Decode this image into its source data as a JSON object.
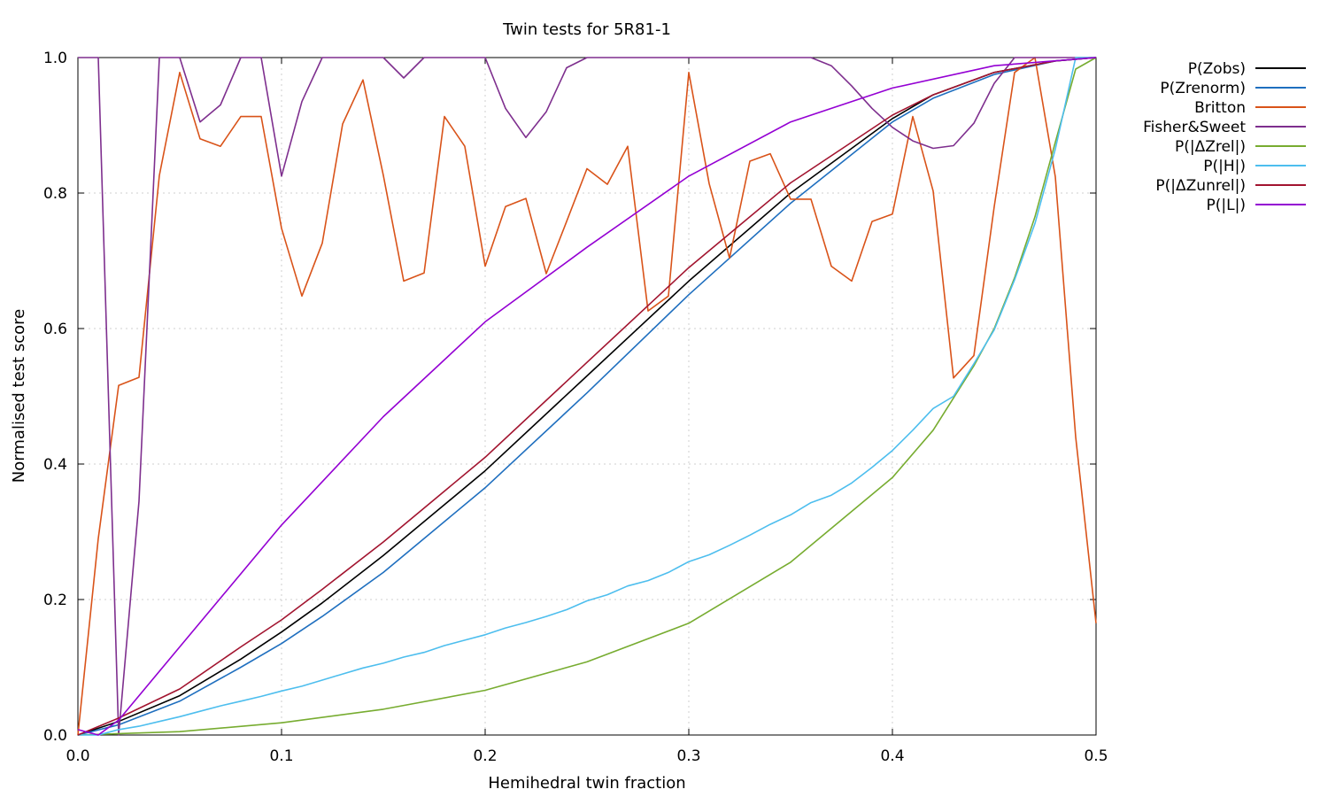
{
  "chart_data": {
    "type": "line",
    "title": "Twin tests for 5R81-1",
    "xlabel": "Hemihedral twin fraction",
    "ylabel": "Normalised test score",
    "xlim": [
      0.0,
      0.5
    ],
    "ylim": [
      0.0,
      1.0
    ],
    "x_ticks": [
      "0.0",
      "0.1",
      "0.2",
      "0.3",
      "0.4",
      "0.5"
    ],
    "y_ticks": [
      "0.0",
      "0.2",
      "0.4",
      "0.6",
      "0.8",
      "1.0"
    ],
    "grid": true,
    "legend_position": "outside-top-right",
    "series": [
      {
        "name": "P(Zobs)",
        "color": "#000000",
        "x": [
          0,
          0.02,
          0.05,
          0.08,
          0.1,
          0.12,
          0.15,
          0.18,
          0.2,
          0.25,
          0.3,
          0.35,
          0.4,
          0.42,
          0.45,
          0.48,
          0.5
        ],
        "y": [
          0,
          0.02,
          0.058,
          0.112,
          0.152,
          0.195,
          0.265,
          0.34,
          0.39,
          0.53,
          0.67,
          0.8,
          0.91,
          0.945,
          0.978,
          0.995,
          1.0
        ]
      },
      {
        "name": "P(Zrenorm)",
        "color": "#1f6fbf",
        "x": [
          0,
          0.02,
          0.05,
          0.08,
          0.1,
          0.12,
          0.15,
          0.18,
          0.2,
          0.25,
          0.3,
          0.35,
          0.4,
          0.42,
          0.45,
          0.48,
          0.5
        ],
        "y": [
          0,
          0.015,
          0.05,
          0.1,
          0.135,
          0.175,
          0.24,
          0.315,
          0.365,
          0.505,
          0.65,
          0.785,
          0.905,
          0.94,
          0.975,
          0.995,
          1.0
        ]
      },
      {
        "name": "Britton",
        "color": "#d95319",
        "x": [
          0,
          0.01,
          0.02,
          0.03,
          0.04,
          0.05,
          0.06,
          0.07,
          0.08,
          0.09,
          0.1,
          0.11,
          0.12,
          0.13,
          0.14,
          0.15,
          0.16,
          0.17,
          0.18,
          0.19,
          0.2,
          0.21,
          0.22,
          0.23,
          0.24,
          0.25,
          0.26,
          0.27,
          0.28,
          0.29,
          0.3,
          0.31,
          0.32,
          0.33,
          0.34,
          0.35,
          0.36,
          0.37,
          0.38,
          0.39,
          0.4,
          0.41,
          0.42,
          0.43,
          0.44,
          0.45,
          0.46,
          0.47,
          0.48,
          0.49,
          0.5
        ],
        "y": [
          0,
          0.29,
          0.516,
          0.528,
          0.826,
          0.978,
          0.88,
          0.869,
          0.913,
          0.913,
          0.748,
          0.648,
          0.726,
          0.902,
          0.967,
          0.826,
          0.67,
          0.682,
          0.913,
          0.869,
          0.692,
          0.78,
          0.792,
          0.681,
          0.758,
          0.836,
          0.813,
          0.869,
          0.626,
          0.648,
          0.978,
          0.814,
          0.704,
          0.847,
          0.858,
          0.791,
          0.791,
          0.692,
          0.67,
          0.758,
          0.769,
          0.913,
          0.803,
          0.527,
          0.56,
          0.78,
          0.978,
          1.0,
          0.824,
          0.44,
          0.165
        ]
      },
      {
        "name": "Fisher&Sweet",
        "color": "#7e2f8e",
        "x": [
          0,
          0.005,
          0.01,
          0.02,
          0.03,
          0.04,
          0.05,
          0.06,
          0.07,
          0.08,
          0.09,
          0.1,
          0.11,
          0.12,
          0.13,
          0.14,
          0.15,
          0.16,
          0.17,
          0.18,
          0.19,
          0.2,
          0.21,
          0.22,
          0.23,
          0.24,
          0.25,
          0.26,
          0.3,
          0.35,
          0.36,
          0.37,
          0.38,
          0.39,
          0.4,
          0.41,
          0.42,
          0.43,
          0.44,
          0.45,
          0.46,
          0.47,
          0.48,
          0.49,
          0.5
        ],
        "y": [
          1.0,
          1.0,
          1.0,
          0.0,
          0.345,
          1.0,
          1.0,
          0.905,
          0.93,
          1.0,
          1.0,
          0.825,
          0.935,
          1.0,
          1.0,
          1.0,
          1.0,
          0.97,
          1.0,
          1.0,
          1.0,
          1.0,
          0.925,
          0.882,
          0.92,
          0.985,
          1.0,
          1.0,
          1.0,
          1.0,
          1.0,
          0.988,
          0.958,
          0.925,
          0.897,
          0.877,
          0.866,
          0.87,
          0.903,
          0.962,
          1.0,
          1.0,
          1.0,
          1.0,
          1.0
        ]
      },
      {
        "name": "P(|ΔZrel|)",
        "color": "#77ac30",
        "x": [
          0,
          0.05,
          0.1,
          0.15,
          0.2,
          0.25,
          0.3,
          0.35,
          0.38,
          0.4,
          0.42,
          0.44,
          0.45,
          0.46,
          0.47,
          0.48,
          0.49,
          0.5
        ],
        "y": [
          0,
          0.005,
          0.018,
          0.038,
          0.066,
          0.108,
          0.165,
          0.255,
          0.33,
          0.38,
          0.45,
          0.545,
          0.6,
          0.675,
          0.765,
          0.875,
          0.983,
          1.0
        ]
      },
      {
        "name": "P(|H|)",
        "color": "#4dbeee",
        "x": [
          0,
          0.01,
          0.02,
          0.03,
          0.04,
          0.05,
          0.06,
          0.07,
          0.08,
          0.09,
          0.1,
          0.11,
          0.12,
          0.13,
          0.14,
          0.15,
          0.16,
          0.17,
          0.18,
          0.19,
          0.2,
          0.21,
          0.22,
          0.23,
          0.24,
          0.25,
          0.26,
          0.27,
          0.28,
          0.29,
          0.3,
          0.31,
          0.32,
          0.33,
          0.34,
          0.35,
          0.36,
          0.37,
          0.38,
          0.39,
          0.4,
          0.41,
          0.42,
          0.43,
          0.44,
          0.45,
          0.46,
          0.47,
          0.48,
          0.49,
          0.5
        ],
        "y": [
          0,
          0,
          0.008,
          0.013,
          0.02,
          0.027,
          0.035,
          0.043,
          0.05,
          0.057,
          0.065,
          0.072,
          0.081,
          0.09,
          0.099,
          0.106,
          0.115,
          0.122,
          0.132,
          0.14,
          0.148,
          0.158,
          0.166,
          0.175,
          0.185,
          0.198,
          0.207,
          0.22,
          0.228,
          0.24,
          0.256,
          0.266,
          0.28,
          0.295,
          0.311,
          0.325,
          0.343,
          0.354,
          0.372,
          0.395,
          0.42,
          0.45,
          0.482,
          0.5,
          0.548,
          0.598,
          0.672,
          0.755,
          0.865,
          1.0,
          1.0
        ]
      },
      {
        "name": "P(|ΔZunrel|)",
        "color": "#a2142f",
        "x": [
          0,
          0.02,
          0.05,
          0.08,
          0.1,
          0.12,
          0.15,
          0.18,
          0.2,
          0.25,
          0.3,
          0.35,
          0.4,
          0.42,
          0.45,
          0.48,
          0.5
        ],
        "y": [
          0,
          0.025,
          0.068,
          0.13,
          0.17,
          0.215,
          0.285,
          0.36,
          0.41,
          0.55,
          0.69,
          0.815,
          0.915,
          0.945,
          0.978,
          0.995,
          1.0
        ]
      },
      {
        "name": "P(|L|)",
        "color": "#9400d3",
        "x": [
          0,
          0.01,
          0.02,
          0.05,
          0.1,
          0.15,
          0.2,
          0.25,
          0.3,
          0.35,
          0.4,
          0.45,
          0.5
        ],
        "y": [
          0.008,
          0.0,
          0.022,
          0.13,
          0.31,
          0.47,
          0.61,
          0.72,
          0.825,
          0.905,
          0.955,
          0.988,
          1.0
        ]
      }
    ]
  }
}
